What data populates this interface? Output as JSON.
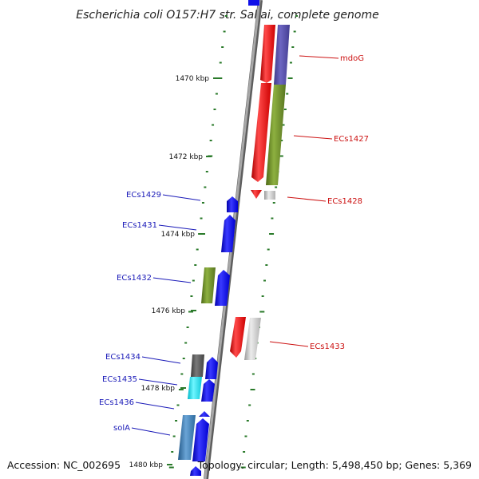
{
  "title": "Escherichia coli O157:H7 str. Sakai, complete genome",
  "footer": {
    "accession": "Accession: NC_002695",
    "summary": "Topology: circular; Length: 5,498,450 bp; Genes: 5,369"
  },
  "colors": {
    "forward": "#1010e8",
    "reverse": "#ee1111",
    "label_forward": "#1a1ab8",
    "label_reverse": "#cc1111",
    "tick": "#2a7a2a",
    "backbone": "#808080"
  },
  "ticks": [
    "1470 kbp",
    "1472 kbp",
    "1474 kbp",
    "1476 kbp",
    "1478 kbp",
    "1480 kbp"
  ],
  "genes": [
    {
      "name": "mdoG",
      "strand": "reverse"
    },
    {
      "name": "ECs1427",
      "strand": "reverse"
    },
    {
      "name": "ECs1428",
      "strand": "reverse"
    },
    {
      "name": "ECs1429",
      "strand": "forward"
    },
    {
      "name": "ECs1431",
      "strand": "forward"
    },
    {
      "name": "ECs1432",
      "strand": "forward"
    },
    {
      "name": "ECs1433",
      "strand": "reverse"
    },
    {
      "name": "ECs1434",
      "strand": "forward"
    },
    {
      "name": "ECs1435",
      "strand": "forward"
    },
    {
      "name": "ECs1436",
      "strand": "forward"
    },
    {
      "name": "solA",
      "strand": "forward"
    }
  ]
}
